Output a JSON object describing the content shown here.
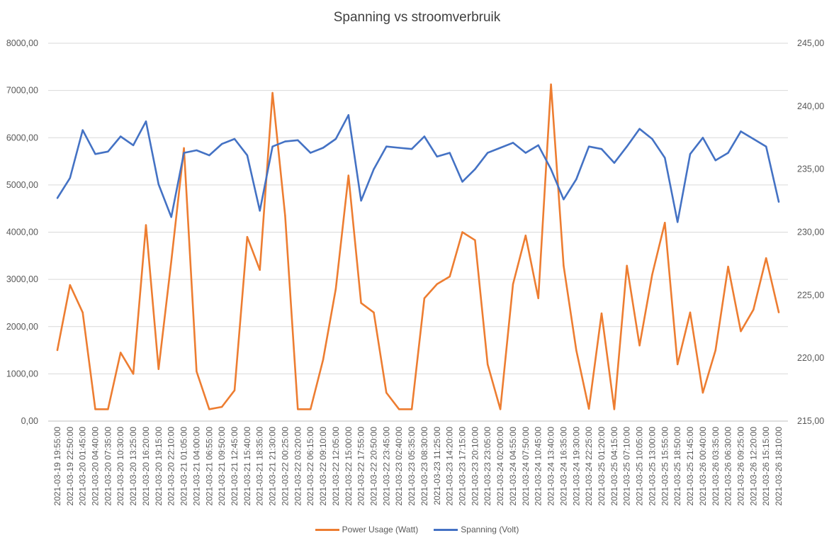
{
  "chart_data": {
    "type": "line",
    "title": "Spanning vs stroomverbruik",
    "xlabel": "",
    "ylabel": "",
    "y_left": {
      "lim": [
        0,
        8000
      ],
      "ticks": [
        "0,00",
        "1000,00",
        "2000,00",
        "3000,00",
        "4000,00",
        "5000,00",
        "6000,00",
        "7000,00",
        "8000,00"
      ],
      "values": [
        0,
        1000,
        2000,
        3000,
        4000,
        5000,
        6000,
        7000,
        8000
      ]
    },
    "y_right": {
      "lim": [
        215,
        245
      ],
      "ticks": [
        "215,00",
        "220,00",
        "225,00",
        "230,00",
        "235,00",
        "240,00",
        "245,00"
      ],
      "values": [
        215,
        220,
        225,
        230,
        235,
        240,
        245
      ]
    },
    "grid": true,
    "legend_position": "bottom",
    "categories": [
      "2021-03-19 19:55:00",
      "2021-03-19 22:50:00",
      "2021-03-20 01:45:00",
      "2021-03-20 04:40:00",
      "2021-03-20 07:35:00",
      "2021-03-20 10:30:00",
      "2021-03-20 13:25:00",
      "2021-03-20 16:20:00",
      "2021-03-20 19:15:00",
      "2021-03-20 22:10:00",
      "2021-03-21 01:05:00",
      "2021-03-21 04:00:00",
      "2021-03-21 06:55:00",
      "2021-03-21 09:50:00",
      "2021-03-21 12:45:00",
      "2021-03-21 15:40:00",
      "2021-03-21 18:35:00",
      "2021-03-21 21:30:00",
      "2021-03-22 00:25:00",
      "2021-03-22 03:20:00",
      "2021-03-22 06:15:00",
      "2021-03-22 09:10:00",
      "2021-03-22 12:05:00",
      "2021-03-22 15:00:00",
      "2021-03-22 17:55:00",
      "2021-03-22 20:50:00",
      "2021-03-22 23:45:00",
      "2021-03-23 02:40:00",
      "2021-03-23 05:35:00",
      "2021-03-23 08:30:00",
      "2021-03-23 11:25:00",
      "2021-03-23 14:20:00",
      "2021-03-23 17:15:00",
      "2021-03-23 20:10:00",
      "2021-03-23 23:05:00",
      "2021-03-24 02:00:00",
      "2021-03-24 04:55:00",
      "2021-03-24 07:50:00",
      "2021-03-24 10:45:00",
      "2021-03-24 13:40:00",
      "2021-03-24 16:35:00",
      "2021-03-24 19:30:00",
      "2021-03-24 22:25:00",
      "2021-03-25 01:20:00",
      "2021-03-25 04:15:00",
      "2021-03-25 07:10:00",
      "2021-03-25 10:05:00",
      "2021-03-25 13:00:00",
      "2021-03-25 15:55:00",
      "2021-03-25 18:50:00",
      "2021-03-25 21:45:00",
      "2021-03-26 00:40:00",
      "2021-03-26 03:35:00",
      "2021-03-26 06:30:00",
      "2021-03-26 09:25:00",
      "2021-03-26 12:20:00",
      "2021-03-26 15:15:00",
      "2021-03-26 18:10:00"
    ],
    "series": [
      {
        "name": "Power Usage (Watt)",
        "axis": "left",
        "color": "#ED7D31",
        "values": [
          1500,
          2880,
          2300,
          250,
          250,
          1450,
          1000,
          4150,
          1100,
          3380,
          5780,
          1050,
          250,
          300,
          650,
          3900,
          3200,
          6950,
          4350,
          250,
          250,
          1300,
          2800,
          5200,
          2500,
          2300,
          600,
          250,
          250,
          2600,
          2900,
          3060,
          4000,
          3830,
          1200,
          250,
          2900,
          3930,
          2600,
          7130,
          3290,
          1500,
          260,
          2280,
          250,
          3290,
          1600,
          3100,
          4200,
          1200,
          2300,
          600,
          1500,
          3270,
          1900,
          2360,
          3450,
          2300
        ]
      },
      {
        "name": "Spanning (Volt)",
        "axis": "right",
        "color": "#4472C4",
        "values": [
          232.7,
          234.3,
          238.1,
          236.2,
          236.4,
          237.6,
          236.9,
          238.8,
          233.8,
          231.2,
          236.3,
          236.5,
          236.1,
          237.0,
          237.4,
          236.1,
          231.7,
          236.8,
          237.2,
          237.3,
          236.3,
          236.7,
          237.4,
          239.3,
          232.5,
          235.0,
          236.8,
          236.7,
          236.6,
          237.6,
          236.0,
          236.3,
          234.0,
          235.0,
          236.3,
          236.7,
          237.1,
          236.3,
          236.9,
          235.0,
          232.6,
          234.2,
          236.8,
          236.6,
          235.5,
          236.8,
          238.2,
          237.4,
          235.9,
          230.8,
          236.2,
          237.5,
          235.7,
          236.3,
          238.0,
          237.4,
          236.8,
          232.4
        ]
      }
    ]
  }
}
